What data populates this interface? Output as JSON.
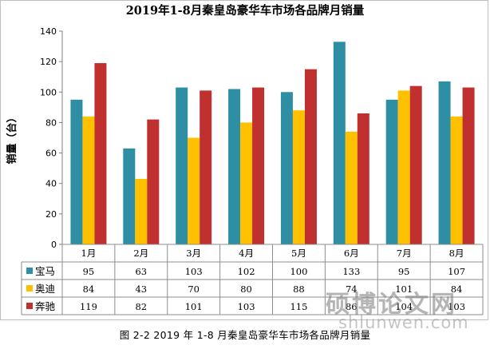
{
  "chart_data": {
    "type": "bar",
    "title": "2019年1-8月秦皇岛豪华车市场各品牌月销量",
    "ylabel": "销量（台）",
    "xlabel": "",
    "ylim": [
      0,
      140
    ],
    "yticks": [
      0,
      20,
      40,
      60,
      80,
      100,
      120,
      140
    ],
    "grid": false,
    "legend": "table-left",
    "categories": [
      "1月",
      "2月",
      "3月",
      "4月",
      "5月",
      "6月",
      "7月",
      "8月"
    ],
    "series": [
      {
        "name": "宝马",
        "color": "#2e8fa4",
        "values": [
          95,
          63,
          103,
          102,
          100,
          133,
          95,
          107
        ]
      },
      {
        "name": "奥迪",
        "color": "#ffc000",
        "values": [
          84,
          43,
          70,
          80,
          88,
          74,
          101,
          84
        ]
      },
      {
        "name": "奔驰",
        "color": "#c0302f",
        "values": [
          119,
          82,
          101,
          103,
          115,
          86,
          104,
          103
        ]
      }
    ]
  },
  "caption": "图 2-2  2019 年 1-8 月秦皇岛豪华车市场各品牌月销量",
  "watermark": {
    "main": "硕博论文网",
    "sub": "shlunwen.com"
  }
}
